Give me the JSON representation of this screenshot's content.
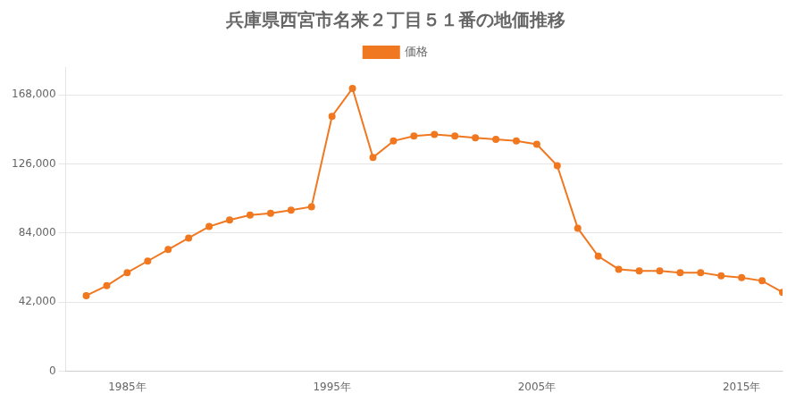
{
  "chart_data": {
    "type": "line",
    "title": "兵庫県西宮市名来２丁目５１番の地価推移",
    "x": [
      1983,
      1984,
      1985,
      1986,
      1987,
      1988,
      1989,
      1990,
      1991,
      1992,
      1993,
      1994,
      1995,
      1996,
      1997,
      1998,
      1999,
      2000,
      2001,
      2002,
      2003,
      2004,
      2005,
      2006,
      2007,
      2008,
      2009,
      2010,
      2011,
      2012,
      2013,
      2014,
      2015,
      2016,
      2017
    ],
    "series": [
      {
        "name": "価格",
        "color": "#f07820",
        "marker": "circle",
        "values": [
          46000,
          52000,
          60000,
          67000,
          74000,
          81000,
          88000,
          92000,
          95000,
          96000,
          98000,
          100000,
          155000,
          172000,
          130000,
          140000,
          143000,
          144000,
          143000,
          142000,
          141000,
          140000,
          138000,
          125000,
          87000,
          70000,
          62000,
          61000,
          61000,
          60000,
          60000,
          58000,
          57000,
          55000,
          48000
        ]
      }
    ],
    "xlim": [
      1982,
      2017
    ],
    "xticks": [
      {
        "value": 1985,
        "label": "1985年"
      },
      {
        "value": 1995,
        "label": "1995年"
      },
      {
        "value": 2005,
        "label": "2005年"
      },
      {
        "value": 2015,
        "label": "2015年"
      }
    ],
    "ylim": [
      0,
      185000
    ],
    "yticks": [
      0,
      {
        "value": 42000,
        "label": "42,000"
      },
      {
        "value": 84000,
        "label": "84,000"
      },
      {
        "value": 126000,
        "label": "126,000"
      },
      {
        "value": 168000,
        "label": "168,000"
      }
    ],
    "grid": "y",
    "legend": "top"
  }
}
